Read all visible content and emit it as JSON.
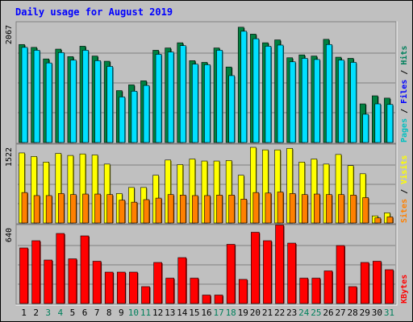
{
  "chart_data": {
    "title": "Daily usage for August 2019",
    "type": "bar",
    "categories": [
      "1",
      "2",
      "3",
      "4",
      "5",
      "6",
      "7",
      "8",
      "9",
      "10",
      "11",
      "12",
      "13",
      "14",
      "15",
      "16",
      "17",
      "18",
      "19",
      "20",
      "21",
      "22",
      "23",
      "24",
      "25",
      "26",
      "27",
      "28",
      "29",
      "30",
      "31"
    ],
    "weekend_days": [
      "3",
      "4",
      "10",
      "11",
      "17",
      "18",
      "24",
      "25",
      "31"
    ],
    "panels": [
      {
        "id": "top",
        "max_label": "2067",
        "ymax": 2067,
        "legend": [
          "Pages",
          "Files",
          "Hits"
        ],
        "series": [
          {
            "name": "Hits",
            "color": "#008040",
            "values": [
              1700,
              1650,
              1450,
              1620,
              1490,
              1670,
              1500,
              1410,
              900,
              1000,
              1070,
              1600,
              1640,
              1730,
              1420,
              1390,
              1640,
              1310,
              2000,
              1880,
              1730,
              1780,
              1470,
              1520,
              1500,
              1790,
              1480,
              1460,
              670,
              810,
              770
            ]
          },
          {
            "name": "Files",
            "color": "#00e0ff",
            "values": [
              1650,
              1600,
              1380,
              1560,
              1430,
              1600,
              1420,
              1320,
              790,
              890,
              990,
              1530,
              1570,
              1680,
              1360,
              1350,
              1600,
              1160,
              1930,
              1800,
              1670,
              1690,
              1400,
              1460,
              1440,
              1700,
              1430,
              1390,
              490,
              670,
              660
            ]
          },
          {
            "name": "Pages",
            "color": "#00c0c0",
            "values": []
          }
        ]
      },
      {
        "id": "middle",
        "max_label": "1522",
        "ymax": 1522,
        "legend": [
          "Sites",
          "Visits"
        ],
        "series": [
          {
            "name": "Visits",
            "color": "#ffff00",
            "values": [
              1380,
              1310,
              1200,
              1370,
              1330,
              1360,
              1340,
              1160,
              580,
              700,
              700,
              940,
              1240,
              1150,
              1260,
              1220,
              1220,
              1230,
              940,
              1490,
              1440,
              1440,
              1470,
              1200,
              1260,
              1160,
              1350,
              1130,
              970,
              140,
              200
            ]
          },
          {
            "name": "Sites",
            "color": "#ff8000",
            "values": [
              600,
              540,
              540,
              580,
              560,
              570,
              570,
              560,
              450,
              410,
              460,
              490,
              560,
              550,
              540,
              540,
              550,
              550,
              470,
              600,
              590,
              610,
              580,
              560,
              570,
              560,
              560,
              550,
              500,
              100,
              120
            ]
          }
        ]
      },
      {
        "id": "bottom",
        "max_label": "640",
        "ymax": 640,
        "legend": [
          "KBytes"
        ],
        "series": [
          {
            "name": "KBytes",
            "color": "#ff0000",
            "values": [
              460,
              520,
              360,
              580,
              370,
              560,
              350,
              260,
              260,
              260,
              140,
              340,
              210,
              380,
              210,
              70,
              70,
              490,
              200,
              590,
              520,
              650,
              500,
              210,
              210,
              270,
              480,
              140,
              340,
              350,
              280
            ]
          }
        ]
      }
    ],
    "colors": {
      "background": "#c0c0c0",
      "title": "#0000ff",
      "grid": "#808080",
      "weekday_label": "#000000",
      "weekend_label": "#00805c",
      "hits_label": "#00805c",
      "files_label": "#0000ff",
      "pages_label": "#00c0c0",
      "visits_label": "#ffff00",
      "sites_label": "#ff8000",
      "kbytes_label": "#ff0000"
    }
  }
}
